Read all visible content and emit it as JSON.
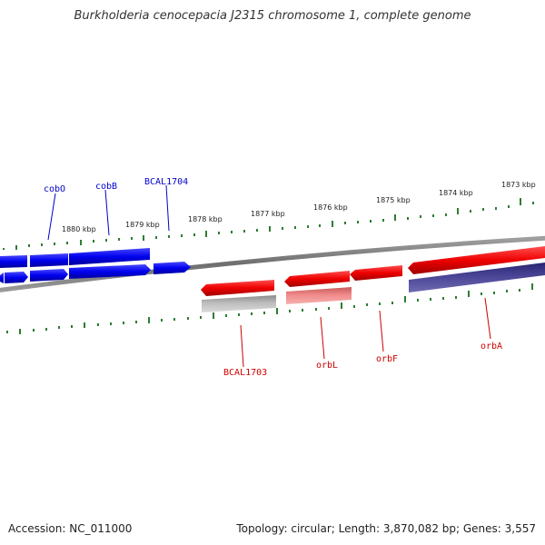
{
  "title": "Burkholderia cenocepacia J2315 chromosome 1, complete genome",
  "footer": {
    "accession": "Accession: NC_011000",
    "summary": "Topology: circular; Length: 3,870,082 bp; Genes: 3,557"
  },
  "colors": {
    "forward_gene": "#0000ee",
    "reverse_gene": "#ee0000",
    "gene_label_forward": "#0000cc",
    "gene_label_reverse": "#cc0000",
    "tick": "#2e7d32",
    "backbone": "#7a7a7a",
    "forward_feature": "#0000ee",
    "reverse_feature_faded": "#f08080",
    "reverse_feature_gray": "#b0b0b0",
    "reverse_feature_dark": "#4a4596"
  },
  "scale_labels": [
    "1880 kbp",
    "1879 kbp",
    "1878 kbp",
    "1877 kbp",
    "1876 kbp",
    "1875 kbp",
    "1874 kbp",
    "1873 kbp"
  ],
  "genes": [
    {
      "label": "cobO",
      "strand": "forward"
    },
    {
      "label": "cobB",
      "strand": "forward"
    },
    {
      "label": "BCAL1704",
      "strand": "forward"
    },
    {
      "label": "BCAL1703",
      "strand": "reverse"
    },
    {
      "label": "orbL",
      "strand": "reverse"
    },
    {
      "label": "orbF",
      "strand": "reverse"
    },
    {
      "label": "orbA",
      "strand": "reverse"
    }
  ]
}
